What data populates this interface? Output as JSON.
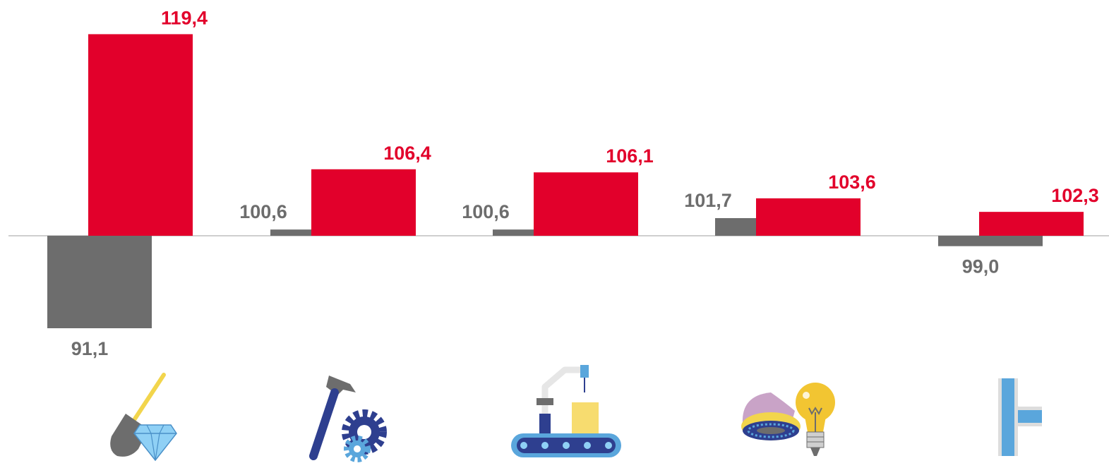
{
  "chart_data": {
    "type": "bar",
    "baseline": 100,
    "categories": [
      "mining",
      "manufacturing",
      "industrial-production",
      "energy-gas",
      "water-supply"
    ],
    "series": [
      {
        "values": [
          91.1,
          100.6,
          100.6,
          101.7,
          99.0
        ],
        "labels": [
          "91,1",
          "100,6",
          "100,6",
          "101,7",
          "99,0"
        ],
        "color": "#6d6d6d"
      },
      {
        "values": [
          119.4,
          106.4,
          106.1,
          103.6,
          102.3
        ],
        "labels": [
          "119,4",
          "106,4",
          "106,1",
          "103,6",
          "102,3"
        ],
        "color": "#e2002b"
      }
    ],
    "icons": [
      "shovel-diamond-icon",
      "hammer-gear-icon",
      "conveyor-robot-icon",
      "gas-flame-lightbulb-icon",
      "water-pipe-icon"
    ],
    "axis_color": "#bfbfbf"
  }
}
